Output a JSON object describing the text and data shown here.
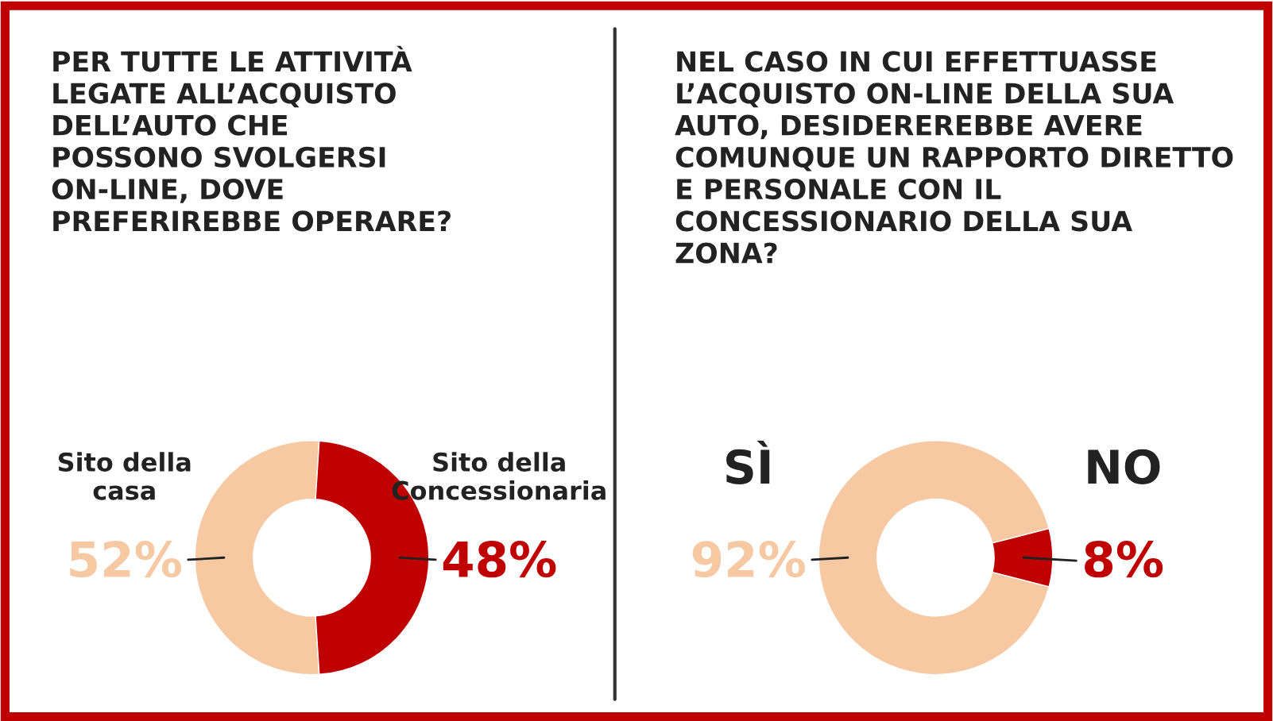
{
  "chart_data": [
    {
      "type": "donut",
      "title": "PER TUTTE LE ATTIVITÀ\nLEGATE ALL’ACQUISTO\nDELL’AUTO CHE\nPOSSONO SVOLGERSI\nON-LINE, DOVE\nPREFERIREBBE OPERARE?",
      "categories": [
        "Sito della\ncasa",
        "Sito della\nConcessionaria"
      ],
      "values": [
        52,
        48
      ],
      "colors": [
        "#f7c9a3",
        "#c00000"
      ],
      "value_labels": [
        "52%",
        "48%"
      ]
    },
    {
      "type": "donut",
      "title": "NEL CASO IN CUI EFFETTUASSE\nL’ACQUISTO ON-LINE DELLA SUA\nAUTO, DESIDEREREBBE AVERE\nCOMUNQUE UN RAPPORTO DIRETTO\nE PERSONALE CON IL\nCONCESSIONARIO DELLA SUA\nZONA?",
      "categories": [
        "SÌ",
        "NO"
      ],
      "values": [
        92,
        8
      ],
      "colors": [
        "#f7c9a3",
        "#c00000"
      ],
      "value_labels": [
        "92%",
        "8%"
      ]
    }
  ]
}
